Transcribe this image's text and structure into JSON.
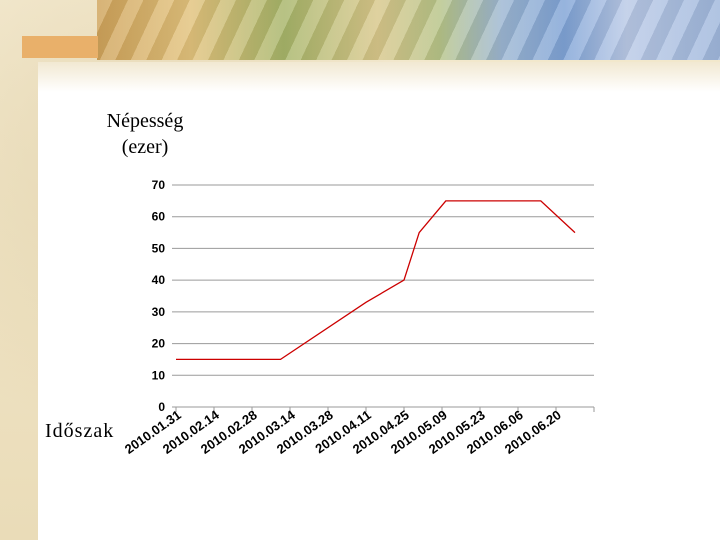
{
  "chart_data": {
    "type": "line",
    "ylabel_line1": "Népesség",
    "ylabel_line2": "(ezer)",
    "xlabel": "Időszak",
    "categories": [
      "2010.01.31",
      "2010.02.14",
      "2010.02.28",
      "2010.03.14",
      "2010.03.28",
      "2010.04.11",
      "2010.04.25",
      "2010.05.09",
      "2010.05.23",
      "2010.06.06",
      "2010.06.20"
    ],
    "series": [
      {
        "color": "#cc0000",
        "points": [
          {
            "x": 0.0,
            "y": 15
          },
          {
            "x": 2.75,
            "y": 15
          },
          {
            "x": 5.0,
            "y": 33
          },
          {
            "x": 6.0,
            "y": 40
          },
          {
            "x": 6.4,
            "y": 55
          },
          {
            "x": 7.1,
            "y": 65
          },
          {
            "x": 9.6,
            "y": 65
          },
          {
            "x": 10.5,
            "y": 55
          }
        ]
      }
    ],
    "yticks": [
      0,
      10,
      20,
      30,
      40,
      50,
      60,
      70
    ],
    "ylim": [
      0,
      70
    ],
    "grid": true,
    "legend": "none"
  }
}
